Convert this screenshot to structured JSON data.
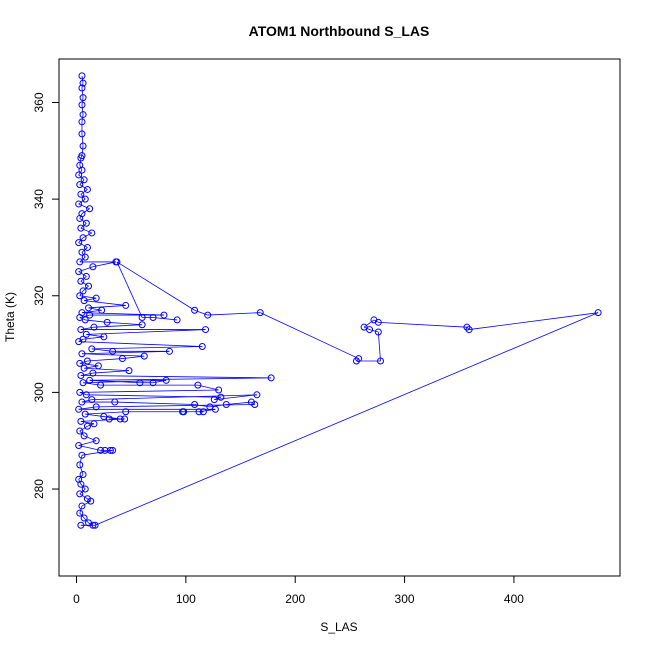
{
  "chart_data": {
    "type": "scatter",
    "title": "ATOM1 Northbound S_LAS",
    "xlabel": "S_LAS",
    "ylabel": "Theta (K)",
    "xlim": [
      -16,
      497
    ],
    "ylim": [
      262,
      369
    ],
    "x_ticks": [
      0,
      100,
      200,
      300,
      400
    ],
    "y_ticks": [
      280,
      300,
      320,
      340,
      360
    ],
    "grid": false,
    "legend": "none",
    "color": "#0000ff",
    "marker": "open-circle",
    "connected": true,
    "series": [
      {
        "points": [
          [
            5,
            365.5
          ],
          [
            6,
            364
          ],
          [
            5,
            363
          ],
          [
            6,
            361
          ],
          [
            5,
            359.5
          ],
          [
            6,
            357.5
          ],
          [
            5,
            356
          ],
          [
            5,
            353.5
          ],
          [
            6,
            351
          ],
          [
            5,
            349
          ],
          [
            4,
            348.5
          ],
          [
            3,
            347
          ],
          [
            5,
            346
          ],
          [
            2,
            345
          ],
          [
            7,
            344
          ],
          [
            3,
            343
          ],
          [
            10,
            342
          ],
          [
            4,
            341
          ],
          [
            8,
            340
          ],
          [
            2,
            339
          ],
          [
            12,
            338
          ],
          [
            5,
            337
          ],
          [
            3,
            336
          ],
          [
            9,
            335
          ],
          [
            4,
            334
          ],
          [
            14,
            333
          ],
          [
            6,
            332
          ],
          [
            2,
            331
          ],
          [
            10,
            330
          ],
          [
            5,
            329
          ],
          [
            8,
            328
          ],
          [
            3,
            327
          ],
          [
            36,
            327
          ],
          [
            15,
            326
          ],
          [
            2,
            325
          ],
          [
            9,
            324
          ],
          [
            4,
            323
          ],
          [
            11,
            322
          ],
          [
            6,
            321
          ],
          [
            3,
            320
          ],
          [
            18,
            319.5
          ],
          [
            7,
            319
          ],
          [
            45,
            318
          ],
          [
            11,
            317.5
          ],
          [
            23,
            317
          ],
          [
            5,
            316.5
          ],
          [
            80,
            316
          ],
          [
            12,
            316
          ],
          [
            3,
            315.5
          ],
          [
            8,
            315
          ],
          [
            28,
            314.5
          ],
          [
            60,
            314
          ],
          [
            16,
            313.5
          ],
          [
            4,
            313
          ],
          [
            118,
            313
          ],
          [
            9,
            312
          ],
          [
            25,
            311.5
          ],
          [
            6,
            311
          ],
          [
            2,
            310.5
          ],
          [
            115,
            309.5
          ],
          [
            14,
            309
          ],
          [
            33,
            308.5
          ],
          [
            85,
            308.5
          ],
          [
            5,
            308
          ],
          [
            62,
            307.5
          ],
          [
            42,
            307
          ],
          [
            10,
            306.5
          ],
          [
            3,
            306
          ],
          [
            20,
            305.5
          ],
          [
            7,
            305
          ],
          [
            48,
            304.5
          ],
          [
            15,
            304
          ],
          [
            4,
            303.5
          ],
          [
            178,
            303
          ],
          [
            12,
            302.5
          ],
          [
            58,
            302
          ],
          [
            70,
            302
          ],
          [
            82,
            302.5
          ],
          [
            6,
            302
          ],
          [
            22,
            301.5
          ],
          [
            111,
            301.5
          ],
          [
            130,
            300.5
          ],
          [
            3,
            300
          ],
          [
            9,
            299.5
          ],
          [
            132,
            299
          ],
          [
            126,
            298.5
          ],
          [
            165,
            299.5
          ],
          [
            14,
            298.5
          ],
          [
            5,
            298
          ],
          [
            35,
            298
          ],
          [
            108,
            297.5
          ],
          [
            122,
            297
          ],
          [
            137,
            297.5
          ],
          [
            160,
            298
          ],
          [
            163,
            297.5
          ],
          [
            18,
            297
          ],
          [
            2,
            296.5
          ],
          [
            127,
            296.5
          ],
          [
            112,
            296
          ],
          [
            116,
            296
          ],
          [
            97,
            296
          ],
          [
            98,
            296
          ],
          [
            45,
            296
          ],
          [
            8,
            295.5
          ],
          [
            25,
            295
          ],
          [
            40,
            294.5
          ],
          [
            30,
            294.5
          ],
          [
            44,
            294.5
          ],
          [
            4,
            294
          ],
          [
            16,
            293.5
          ],
          [
            10,
            293
          ],
          [
            3,
            292
          ],
          [
            7,
            291
          ],
          [
            18,
            290
          ],
          [
            2,
            289
          ],
          [
            22,
            288
          ],
          [
            26,
            288
          ],
          [
            31,
            288
          ],
          [
            33,
            288
          ],
          [
            5,
            287
          ],
          [
            3,
            285
          ],
          [
            6,
            283
          ],
          [
            2,
            282
          ],
          [
            4,
            281
          ],
          [
            8,
            280
          ],
          [
            3,
            279
          ],
          [
            10,
            278
          ],
          [
            13,
            277.5
          ],
          [
            5,
            276.5
          ],
          [
            3,
            275
          ],
          [
            7,
            274
          ],
          [
            11,
            273
          ],
          [
            15,
            272.5
          ],
          [
            4,
            272.5
          ],
          [
            17,
            272.5
          ],
          [
            477,
            316.5
          ],
          [
            359,
            313
          ],
          [
            357,
            313.5
          ],
          [
            276,
            314.5
          ],
          [
            272,
            315
          ],
          [
            263,
            313.5
          ],
          [
            268,
            313
          ],
          [
            276,
            312.5
          ],
          [
            278,
            306.5
          ],
          [
            256,
            306.5
          ],
          [
            258,
            307
          ],
          [
            168,
            316.5
          ],
          [
            120,
            316
          ],
          [
            108,
            317
          ],
          [
            37,
            327
          ],
          [
            60,
            315.5
          ],
          [
            70,
            315.5
          ],
          [
            92,
            315
          ]
        ]
      }
    ]
  }
}
